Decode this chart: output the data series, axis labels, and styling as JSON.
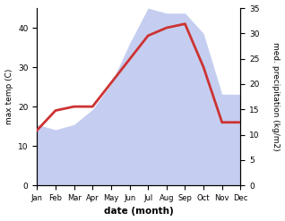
{
  "months": [
    "Jan",
    "Feb",
    "Mar",
    "Apr",
    "May",
    "Jun",
    "Jul",
    "Aug",
    "Sep",
    "Oct",
    "Nov",
    "Dec"
  ],
  "temperature": [
    14,
    19,
    20,
    20,
    26,
    32,
    38,
    40,
    41,
    30,
    16,
    16
  ],
  "precipitation": [
    12,
    11,
    12,
    15,
    20,
    28,
    35,
    34,
    34,
    30,
    18,
    18
  ],
  "temp_color": "#cc3333",
  "precip_color": "#c5cef0",
  "temp_ylim": [
    0,
    45
  ],
  "precip_ylim": [
    0,
    35
  ],
  "temp_yticks": [
    0,
    10,
    20,
    30,
    40
  ],
  "precip_yticks": [
    0,
    5,
    10,
    15,
    20,
    25,
    30,
    35
  ],
  "xlabel": "date (month)",
  "ylabel_left": "max temp (C)",
  "ylabel_right": "med. precipitation (kg/m2)",
  "temp_linewidth": 2.0,
  "background_color": "#ffffff"
}
